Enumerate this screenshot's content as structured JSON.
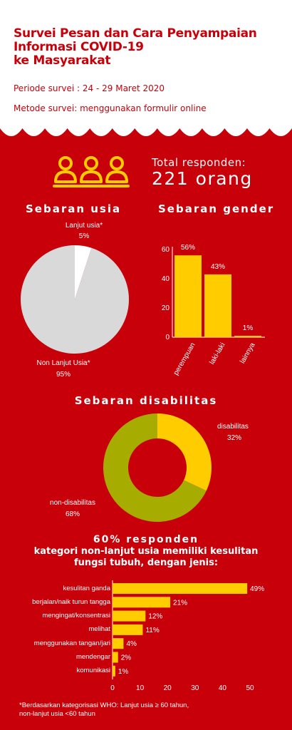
{
  "header": {
    "title_lines": [
      "Survei Pesan dan Cara Penyampaian",
      "Informasi COVID-19",
      "ke Masyarakat"
    ],
    "period": "Periode survei : 24 - 29 Maret 2020",
    "method": "Metode survei: menggunakan formulir online"
  },
  "respondents": {
    "label": "Total responden:",
    "value": "221 orang",
    "icon": "people-group-icon"
  },
  "colors": {
    "background": "#c8000a",
    "header": "#ffffff",
    "accent": "#ffcc00",
    "pie_gray": "#d9d9d9",
    "donut_olive": "#a6ac00",
    "text": "#ffffff"
  },
  "chart_data": [
    {
      "type": "pie",
      "title": "Sebaran usia",
      "slices": [
        {
          "label": "Lanjut usia*",
          "value": 5,
          "value_label": "5%",
          "color": "#ffffff"
        },
        {
          "label": "Non Lanjut Usia*",
          "value": 95,
          "value_label": "95%",
          "color": "#d9d9d9"
        }
      ]
    },
    {
      "type": "bar",
      "title": "Sebaran gender",
      "categories": [
        "perempuan",
        "laki-laki",
        "lainnya"
      ],
      "values": [
        56,
        43,
        1
      ],
      "value_labels": [
        "56%",
        "43%",
        "1%"
      ],
      "yticks": [
        0,
        20,
        40,
        60
      ],
      "ylim": [
        0,
        60
      ]
    },
    {
      "type": "pie",
      "title": "Sebaran disabilitas",
      "donut": true,
      "slices": [
        {
          "label": "disabilitas",
          "value": 32,
          "value_label": "32%",
          "color": "#ffcc00"
        },
        {
          "label": "non-disabilitas",
          "value": 68,
          "value_label": "68%",
          "color": "#a6ac00"
        }
      ]
    },
    {
      "type": "bar",
      "orientation": "horizontal",
      "title_line1": "60% responden",
      "title_line2": "kategori non-lanjut usia memiliki kesulitan",
      "title_line3": "fungsi tubuh, dengan jenis:",
      "categories": [
        "kesulitan ganda",
        "berjalan/naik turun tangga",
        "mengingat/konsentrasi",
        "melihat",
        "menggunakan tangan/jari",
        "mendengar",
        "komunikasi"
      ],
      "values": [
        49,
        21,
        12,
        11,
        4,
        2,
        1
      ],
      "value_labels": [
        "49%",
        "21%",
        "12%",
        "11%",
        "4%",
        "2%",
        "1%"
      ],
      "xticks": [
        0,
        10,
        20,
        30,
        40,
        50
      ],
      "xlim": [
        0,
        50
      ]
    }
  ],
  "footnote": {
    "line1": "*Berdasarkan kategorisasi WHO: Lanjut usia ≥ 60 tahun,",
    "line2": "non-lanjut usia <60 tahun"
  }
}
